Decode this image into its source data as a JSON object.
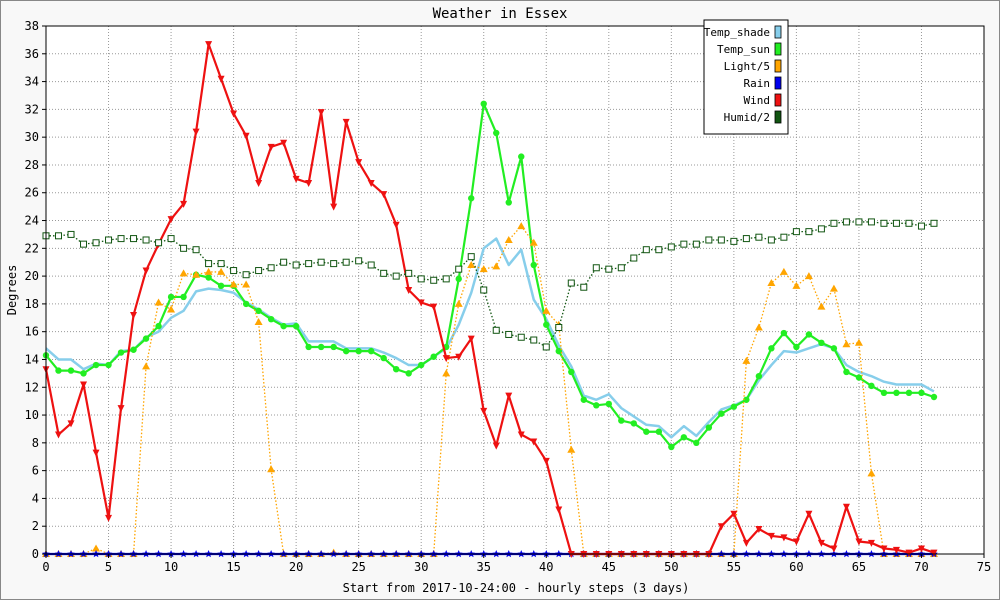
{
  "chart_data": {
    "type": "line",
    "title": "Weather in Essex",
    "xlabel": "Start from 2017-10-24:00 - hourly steps (3 days)",
    "ylabel": "Degrees",
    "xlim": [
      0,
      75
    ],
    "ylim": [
      0,
      38
    ],
    "xticks": [
      0,
      5,
      10,
      15,
      20,
      25,
      30,
      35,
      40,
      45,
      50,
      55,
      60,
      65,
      70,
      75
    ],
    "yticks": [
      0,
      2,
      4,
      6,
      8,
      10,
      12,
      14,
      16,
      18,
      20,
      22,
      24,
      26,
      28,
      30,
      32,
      34,
      36,
      38
    ],
    "grid": true,
    "legend_position": "top-right",
    "series": [
      {
        "name": "Temp_shade",
        "color": "#87ceeb",
        "marker": "none",
        "line": "solid",
        "values": [
          14.8,
          14.0,
          14.0,
          13.3,
          13.7,
          13.6,
          14.6,
          14.7,
          15.6,
          16.0,
          17.0,
          17.5,
          18.9,
          19.1,
          19.0,
          18.8,
          18.1,
          17.6,
          17.0,
          16.5,
          16.6,
          15.3,
          15.3,
          15.3,
          14.8,
          14.8,
          14.8,
          14.5,
          14.1,
          13.6,
          13.6,
          14.2,
          14.8,
          16.5,
          18.8,
          22.0,
          22.7,
          20.8,
          21.9,
          18.3,
          16.9,
          15.0,
          13.5,
          11.4,
          11.1,
          11.5,
          10.5,
          9.9,
          9.3,
          9.2,
          8.4,
          9.2,
          8.5,
          9.5,
          10.4,
          10.7,
          11.1,
          12.5,
          13.6,
          14.6,
          14.5,
          14.8,
          15.1,
          14.8,
          13.6,
          13.1,
          12.8,
          12.4,
          12.2,
          12.2,
          12.2,
          11.7
        ]
      },
      {
        "name": "Temp_sun",
        "color": "#22ee22",
        "marker": "circle",
        "line": "solid",
        "values": [
          14.3,
          13.2,
          13.2,
          13.0,
          13.6,
          13.6,
          14.5,
          14.7,
          15.5,
          16.4,
          18.5,
          18.5,
          20.1,
          19.9,
          19.3,
          19.3,
          18.0,
          17.5,
          16.9,
          16.4,
          16.4,
          14.9,
          14.9,
          14.9,
          14.6,
          14.6,
          14.6,
          14.1,
          13.3,
          13.0,
          13.6,
          14.2,
          14.9,
          19.8,
          25.6,
          32.4,
          30.3,
          25.3,
          28.6,
          20.8,
          16.5,
          14.6,
          13.1,
          11.1,
          10.7,
          10.8,
          9.6,
          9.4,
          8.8,
          8.8,
          7.7,
          8.4,
          8.0,
          9.1,
          10.1,
          10.6,
          11.1,
          12.8,
          14.8,
          15.9,
          14.9,
          15.8,
          15.2,
          14.8,
          13.1,
          12.7,
          12.1,
          11.6,
          11.6,
          11.6,
          11.6,
          11.3
        ]
      },
      {
        "name": "Light/5",
        "color": "#ffa500",
        "marker": "triangle",
        "line": "dotted",
        "values": [
          0,
          0,
          0,
          0,
          0.4,
          0,
          0,
          0,
          13.5,
          18.1,
          17.6,
          20.2,
          20.1,
          20.3,
          20.3,
          19.4,
          19.4,
          16.7,
          6.1,
          0,
          0,
          0,
          0,
          0.1,
          0,
          0,
          0,
          0,
          0,
          0,
          0,
          0,
          13.0,
          18.0,
          20.8,
          20.5,
          20.7,
          22.6,
          23.6,
          22.4,
          17.5,
          16.5,
          7.5,
          0,
          0,
          0,
          0,
          0,
          0,
          0,
          0,
          0,
          0,
          0,
          0,
          0,
          13.9,
          16.3,
          19.5,
          20.3,
          19.3,
          20.0,
          17.8,
          19.1,
          15.1,
          15.2,
          5.8,
          0,
          0,
          0,
          0,
          0
        ]
      },
      {
        "name": "Rain",
        "color": "#0000ee",
        "marker": "star",
        "line": "solid",
        "values": [
          0,
          0,
          0,
          0,
          0,
          0,
          0,
          0,
          0,
          0,
          0,
          0,
          0,
          0,
          0,
          0,
          0,
          0,
          0,
          0,
          0,
          0,
          0,
          0,
          0,
          0,
          0,
          0,
          0,
          0,
          0,
          0,
          0,
          0,
          0,
          0,
          0,
          0,
          0,
          0,
          0,
          0,
          0,
          0,
          0,
          0,
          0,
          0,
          0,
          0,
          0,
          0,
          0,
          0,
          0,
          0,
          0,
          0,
          0,
          0,
          0,
          0,
          0,
          0,
          0,
          0,
          0,
          0,
          0,
          0,
          0,
          0
        ]
      },
      {
        "name": "Wind",
        "color": "#ee1111",
        "marker": "down-triangle",
        "line": "solid",
        "values": [
          13.3,
          8.6,
          9.4,
          12.2,
          7.3,
          2.6,
          10.5,
          17.2,
          20.4,
          22.3,
          24.1,
          25.2,
          30.4,
          36.7,
          34.2,
          31.7,
          30.1,
          26.7,
          29.3,
          29.6,
          27.0,
          26.7,
          31.8,
          25.0,
          31.1,
          28.2,
          26.7,
          25.9,
          23.7,
          19.0,
          18.1,
          17.8,
          14.1,
          14.2,
          15.5,
          10.3,
          7.8,
          11.4,
          8.6,
          8.1,
          6.7,
          3.2,
          0,
          0,
          0,
          0,
          0,
          0,
          0,
          0,
          0,
          0,
          0,
          0,
          2.0,
          2.9,
          0.8,
          1.8,
          1.3,
          1.2,
          0.9,
          2.9,
          0.8,
          0.4,
          3.4,
          0.9,
          0.8,
          0.4,
          0.3,
          0.1,
          0.4,
          0.1
        ]
      },
      {
        "name": "Humid/2",
        "color": "#115511",
        "marker": "square",
        "line": "dotted",
        "values": [
          22.9,
          22.9,
          23.0,
          22.3,
          22.4,
          22.6,
          22.7,
          22.7,
          22.6,
          22.4,
          22.7,
          22.0,
          21.9,
          20.9,
          20.9,
          20.4,
          20.1,
          20.4,
          20.6,
          21.0,
          20.8,
          20.9,
          21.0,
          20.9,
          21.0,
          21.1,
          20.8,
          20.2,
          20.0,
          20.2,
          19.8,
          19.7,
          19.8,
          20.5,
          21.4,
          19.0,
          16.1,
          15.8,
          15.6,
          15.4,
          14.9,
          16.3,
          19.5,
          19.2,
          20.6,
          20.5,
          20.6,
          21.3,
          21.9,
          21.9,
          22.1,
          22.3,
          22.3,
          22.6,
          22.6,
          22.5,
          22.7,
          22.8,
          22.6,
          22.8,
          23.2,
          23.2,
          23.4,
          23.8,
          23.9,
          23.9,
          23.9,
          23.8,
          23.8,
          23.8,
          23.6,
          23.8
        ]
      }
    ]
  }
}
